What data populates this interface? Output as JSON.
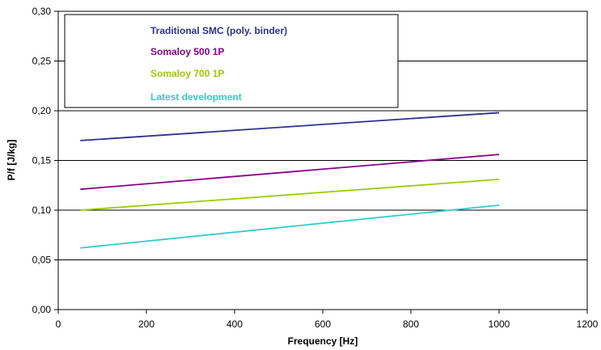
{
  "chart_data": {
    "type": "line",
    "title": "",
    "xlabel": "Frequency [Hz]",
    "ylabel": "P/f [J/kg]",
    "xlim": [
      0,
      1200
    ],
    "ylim": [
      0.0,
      0.3
    ],
    "x_ticks": [
      "0",
      "200",
      "400",
      "600",
      "800",
      "1000",
      "1200"
    ],
    "y_ticks": [
      "0,00",
      "0,05",
      "0,10",
      "0,15",
      "0,20",
      "0,25",
      "0,30"
    ],
    "grid": "horizontal",
    "legend_position": "top-left",
    "series": [
      {
        "name": "Traditional SMC (poly. binder)",
        "color": "#2e3192",
        "x": [
          50,
          1000
        ],
        "y": [
          0.17,
          0.198
        ]
      },
      {
        "name": "Somaloy 500 1P",
        "color": "#8b008b",
        "x": [
          50,
          1000
        ],
        "y": [
          0.121,
          0.156
        ]
      },
      {
        "name": "Somaloy 700 1P",
        "color": "#9acd00",
        "x": [
          50,
          1000
        ],
        "y": [
          0.1,
          0.131
        ]
      },
      {
        "name": "Latest development",
        "color": "#33cccc",
        "x": [
          50,
          1000
        ],
        "y": [
          0.062,
          0.105
        ]
      }
    ]
  }
}
